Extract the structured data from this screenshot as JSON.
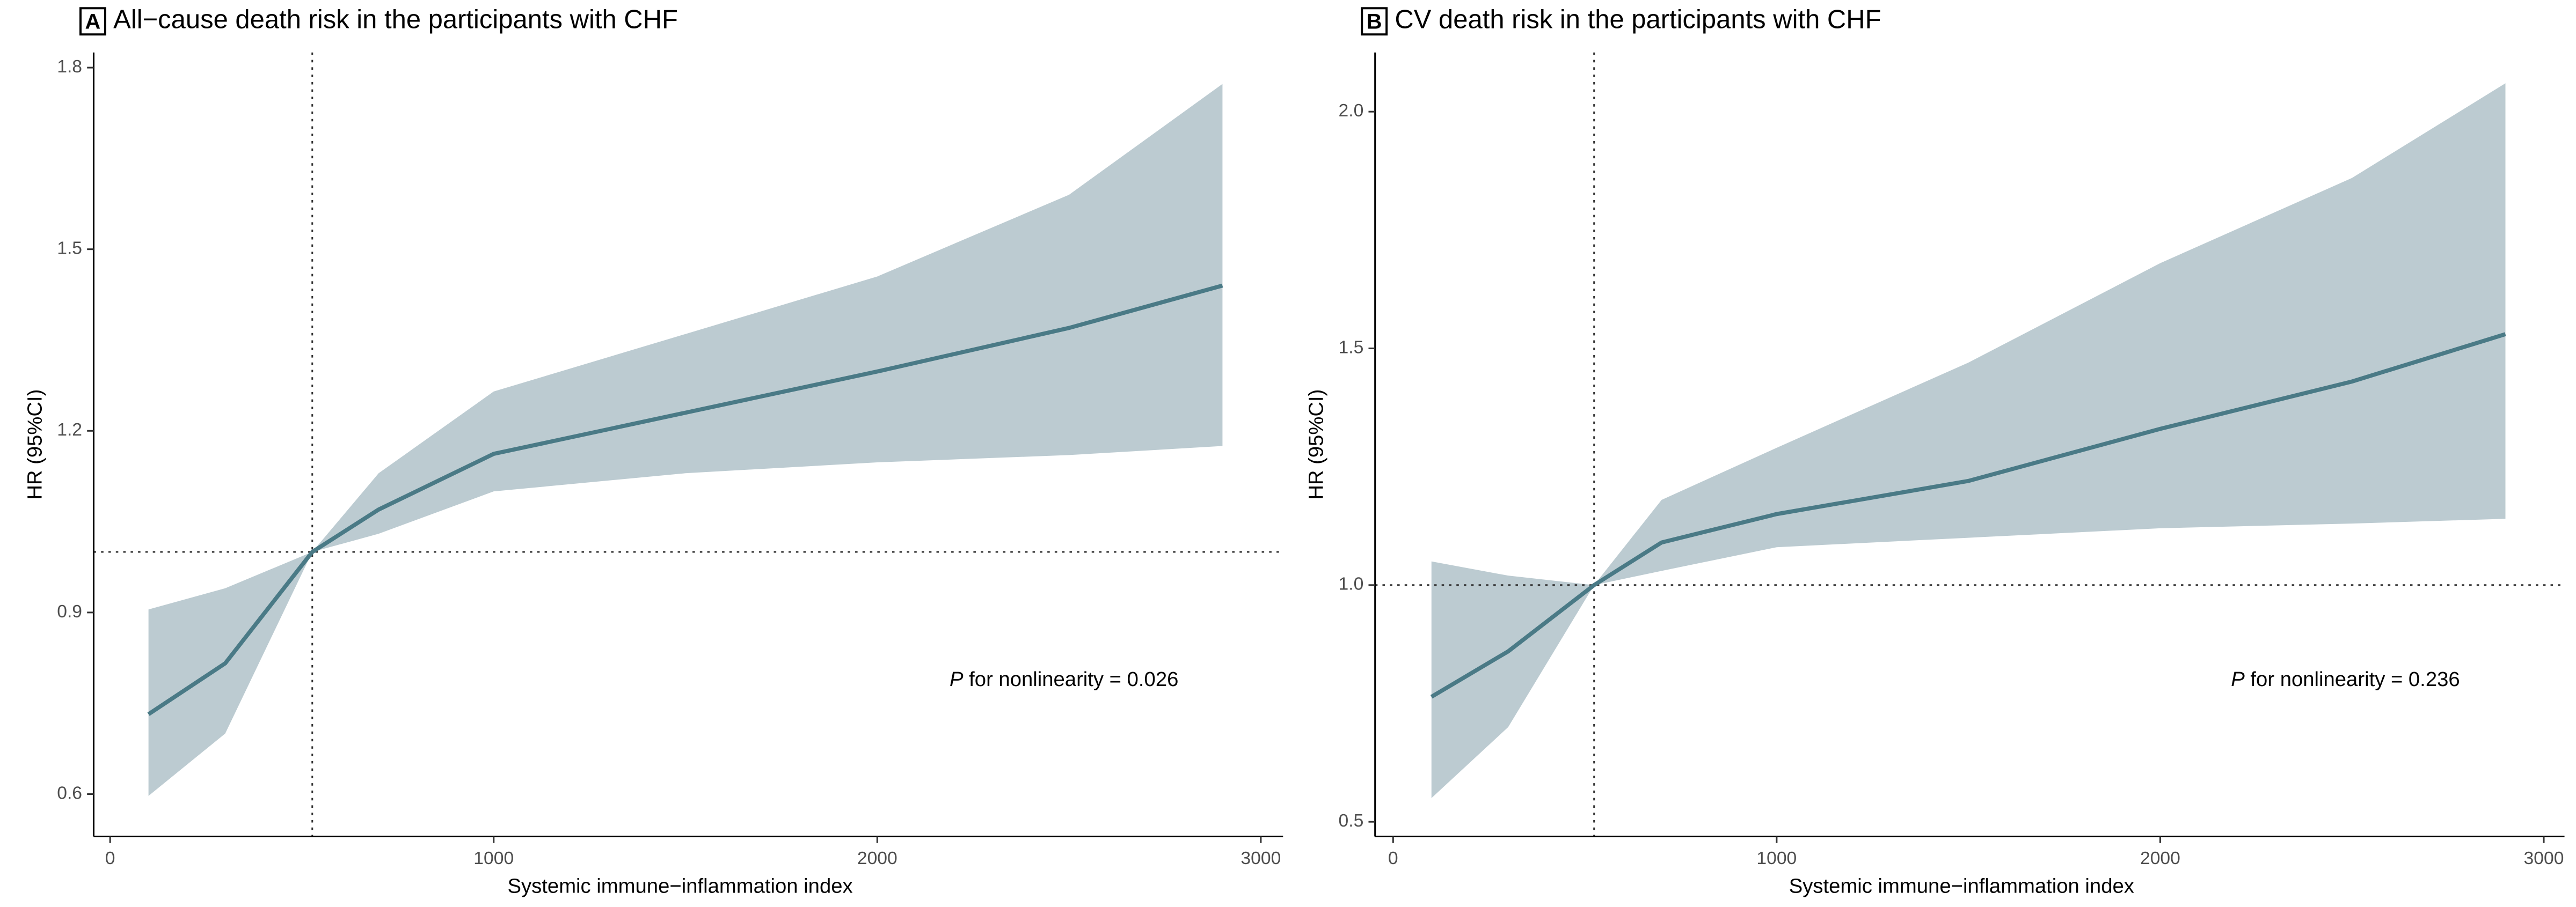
{
  "chart_data": [
    {
      "type": "line",
      "panel": "A",
      "title": "All−cause death risk in the participants with CHF",
      "x_label": "Systemic immune−inflammation index",
      "y_label": "HR (95%CI)",
      "annotation_p": "P",
      "annotation": "for nonlinearity = 0.026",
      "x": [
        100,
        300,
        527,
        700,
        1000,
        1500,
        2000,
        2500,
        2900
      ],
      "series": [
        {
          "color": "#4a7a86",
          "band_color": "#bccbd1",
          "values": [
            0.732,
            0.816,
            1.0,
            1.07,
            1.162,
            1.23,
            1.298,
            1.37,
            1.44
          ],
          "lower": [
            0.597,
            0.7,
            1.0,
            1.03,
            1.1,
            1.13,
            1.148,
            1.16,
            1.175
          ],
          "upper": [
            0.905,
            0.94,
            1.0,
            1.13,
            1.265,
            1.36,
            1.455,
            1.59,
            1.773
          ]
        }
      ],
      "ref_x": 527,
      "ref_y": 1,
      "xlim": [
        -43,
        3058
      ],
      "xticks": [
        0,
        1000,
        2000,
        3000
      ],
      "ylim": [
        0.53,
        1.825
      ],
      "yticks": [
        0.6,
        0.9,
        1.2,
        1.5,
        1.8
      ]
    },
    {
      "type": "line",
      "panel": "B",
      "title": "CV death risk in the participants with CHF",
      "x_label": "Systemic immune−inflammation index",
      "y_label": "HR (95%CI)",
      "annotation_p": "P",
      "annotation": "for nonlinearity = 0.236",
      "x": [
        100,
        300,
        524,
        700,
        1000,
        1500,
        2000,
        2500,
        2900
      ],
      "series": [
        {
          "color": "#4a7a86",
          "band_color": "#bccbd1",
          "values": [
            0.764,
            0.86,
            1.0,
            1.09,
            1.15,
            1.22,
            1.33,
            1.43,
            1.53
          ],
          "lower": [
            0.55,
            0.7,
            1.0,
            1.03,
            1.08,
            1.1,
            1.12,
            1.13,
            1.14
          ],
          "upper": [
            1.05,
            1.02,
            1.0,
            1.18,
            1.29,
            1.47,
            1.68,
            1.86,
            2.06
          ]
        }
      ],
      "ref_x": 524,
      "ref_y": 1,
      "xlim": [
        -47,
        3054
      ],
      "xticks": [
        0,
        1000,
        2000,
        3000
      ],
      "ylim": [
        0.469,
        2.125
      ],
      "yticks": [
        0.5,
        {
          "value": 1.0,
          "label": "1.0"
        },
        1.5,
        {
          "value": 2.0,
          "label": "2.0"
        }
      ]
    }
  ]
}
